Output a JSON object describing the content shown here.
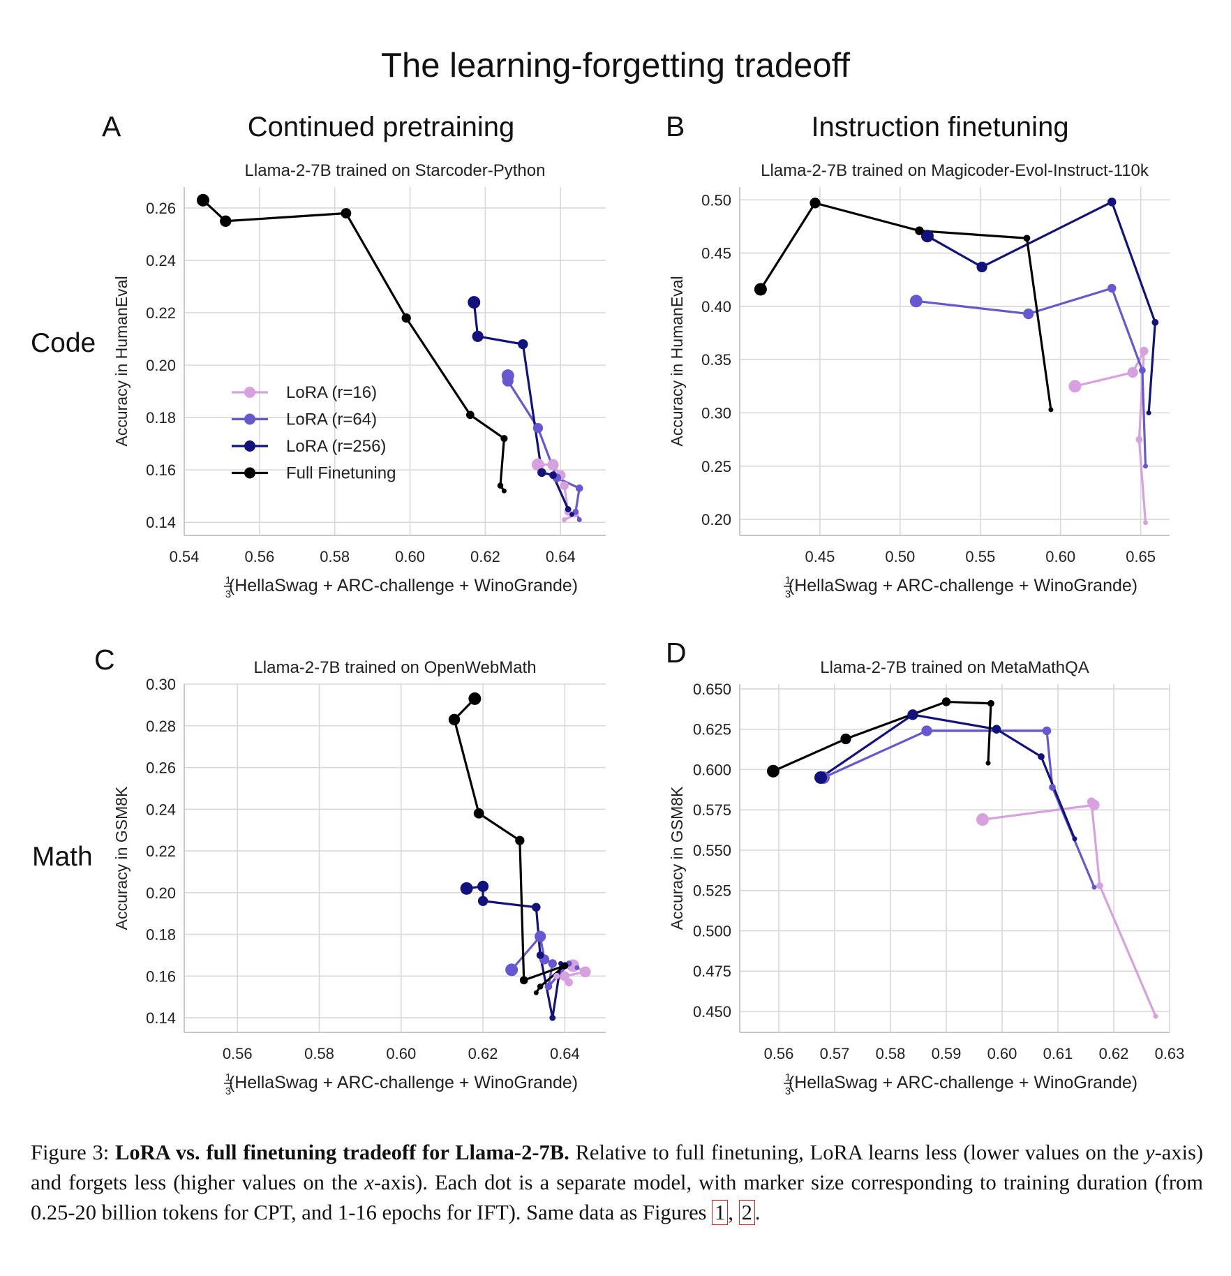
{
  "figure": {
    "title": "The learning-forgetting tradeoff",
    "columns": {
      "A": "Continued pretraining",
      "B": "Instruction finetuning"
    },
    "rows": {
      "code": "Code",
      "math": "Math"
    },
    "letters": [
      "A",
      "B",
      "C",
      "D"
    ]
  },
  "colors": {
    "lora16": "#d7a1df",
    "lora64": "#6658d0",
    "lora256": "#12127e",
    "full": "#000000",
    "grid": "#d9d9d9"
  },
  "legend": [
    {
      "key": "lora16",
      "label": "LoRA (r=16)"
    },
    {
      "key": "lora64",
      "label": "LoRA (r=64)"
    },
    {
      "key": "lora256",
      "label": "LoRA (r=256)"
    },
    {
      "key": "full",
      "label": "Full Finetuning"
    }
  ],
  "chart_data": [
    {
      "id": "A",
      "type": "line",
      "title": "Llama-2-7B trained on Starcoder-Python",
      "xlabel_prefix": "1",
      "xlabel_den": "3",
      "xlabel": "(HellaSwag + ARC-challenge + WinoGrande)",
      "ylabel": "Accuracy in HumanEval",
      "xlim": [
        0.54,
        0.652
      ],
      "ylim": [
        0.135,
        0.268
      ],
      "xticks": [
        0.54,
        0.56,
        0.58,
        0.6,
        0.62,
        0.64
      ],
      "xtick_labels": [
        "0.54",
        "0.56",
        "0.58",
        "0.60",
        "0.62",
        "0.64"
      ],
      "yticks": [
        0.14,
        0.16,
        0.18,
        0.2,
        0.22,
        0.24,
        0.26
      ],
      "ytick_labels": [
        "0.14",
        "0.16",
        "0.18",
        "0.20",
        "0.22",
        "0.24",
        "0.26"
      ],
      "legend_position": "center-left",
      "series": [
        {
          "key": "lora16",
          "name": "LoRA (r=16)",
          "x": [
            0.634,
            0.638,
            0.64,
            0.641,
            0.642,
            0.644,
            0.641
          ],
          "y": [
            0.162,
            0.162,
            0.158,
            0.154,
            0.144,
            0.143,
            0.141
          ]
        },
        {
          "key": "lora64",
          "name": "LoRA (r=64)",
          "x": [
            0.626,
            0.626,
            0.634,
            0.639,
            0.645,
            0.644,
            0.645
          ],
          "y": [
            0.196,
            0.194,
            0.176,
            0.157,
            0.153,
            0.144,
            0.141
          ]
        },
        {
          "key": "lora256",
          "name": "LoRA (r=256)",
          "x": [
            0.617,
            0.618,
            0.63,
            0.635,
            0.638,
            0.642,
            0.643
          ],
          "y": [
            0.224,
            0.211,
            0.208,
            0.159,
            0.158,
            0.145,
            0.143
          ]
        },
        {
          "key": "full",
          "name": "Full Finetuning",
          "x": [
            0.545,
            0.551,
            0.583,
            0.599,
            0.616,
            0.625,
            0.624,
            0.625
          ],
          "y": [
            0.263,
            0.255,
            0.258,
            0.218,
            0.181,
            0.172,
            0.154,
            0.152
          ]
        }
      ]
    },
    {
      "id": "B",
      "type": "line",
      "title": "Llama-2-7B trained on Magicoder-Evol-Instruct-110k",
      "xlabel_prefix": "1",
      "xlabel_den": "3",
      "xlabel": "(HellaSwag + ARC-challenge + WinoGrande)",
      "ylabel": "Accuracy in HumanEval",
      "xlim": [
        0.4,
        0.668
      ],
      "ylim": [
        0.185,
        0.512
      ],
      "xticks": [
        0.45,
        0.5,
        0.55,
        0.6,
        0.65
      ],
      "xtick_labels": [
        "0.45",
        "0.50",
        "0.55",
        "0.60",
        "0.65"
      ],
      "yticks": [
        0.2,
        0.25,
        0.3,
        0.35,
        0.4,
        0.45,
        0.5
      ],
      "ytick_labels": [
        "0.20",
        "0.25",
        "0.30",
        "0.35",
        "0.40",
        "0.45",
        "0.50"
      ],
      "series": [
        {
          "key": "lora16",
          "name": "LoRA (r=16)",
          "x": [
            0.609,
            0.645,
            0.652,
            0.649,
            0.653
          ],
          "y": [
            0.325,
            0.338,
            0.358,
            0.275,
            0.197
          ]
        },
        {
          "key": "lora64",
          "name": "LoRA (r=64)",
          "x": [
            0.51,
            0.58,
            0.632,
            0.651,
            0.653
          ],
          "y": [
            0.405,
            0.393,
            0.417,
            0.34,
            0.25
          ]
        },
        {
          "key": "lora256",
          "name": "LoRA (r=256)",
          "x": [
            0.517,
            0.551,
            0.632,
            0.659,
            0.655
          ],
          "y": [
            0.466,
            0.437,
            0.498,
            0.385,
            0.3
          ]
        },
        {
          "key": "full",
          "name": "Full Finetuning",
          "x": [
            0.413,
            0.447,
            0.512,
            0.579,
            0.594
          ],
          "y": [
            0.416,
            0.497,
            0.471,
            0.464,
            0.303
          ]
        }
      ]
    },
    {
      "id": "C",
      "type": "line",
      "title": "Llama-2-7B trained on OpenWebMath",
      "xlabel_prefix": "1",
      "xlabel_den": "3",
      "xlabel": "(HellaSwag + ARC-challenge + WinoGrande)",
      "ylabel": "Accuracy in GSM8K",
      "xlim": [
        0.547,
        0.65
      ],
      "ylim": [
        0.133,
        0.3
      ],
      "xticks": [
        0.56,
        0.58,
        0.6,
        0.62,
        0.64
      ],
      "xtick_labels": [
        "0.56",
        "0.58",
        "0.60",
        "0.62",
        "0.64"
      ],
      "yticks": [
        0.14,
        0.16,
        0.18,
        0.2,
        0.22,
        0.24,
        0.26,
        0.28,
        0.3
      ],
      "ytick_labels": [
        "0.14",
        "0.16",
        "0.18",
        "0.20",
        "0.22",
        "0.24",
        "0.26",
        "0.28",
        "0.30"
      ],
      "series": [
        {
          "key": "lora16",
          "name": "LoRA (r=16)",
          "x": [
            0.642,
            0.645,
            0.64,
            0.641,
            0.638,
            0.636
          ],
          "y": [
            0.165,
            0.162,
            0.16,
            0.157,
            0.16,
            0.155
          ]
        },
        {
          "key": "lora64",
          "name": "LoRA (r=64)",
          "x": [
            0.627,
            0.634,
            0.635,
            0.637,
            0.636,
            0.641,
            0.643
          ],
          "y": [
            0.163,
            0.179,
            0.168,
            0.166,
            0.155,
            0.166,
            0.164
          ]
        },
        {
          "key": "lora256",
          "name": "LoRA (r=256)",
          "x": [
            0.616,
            0.62,
            0.62,
            0.633,
            0.634,
            0.637,
            0.639
          ],
          "y": [
            0.202,
            0.203,
            0.196,
            0.193,
            0.17,
            0.14,
            0.166
          ]
        },
        {
          "key": "full",
          "name": "Full Finetuning",
          "x": [
            0.618,
            0.613,
            0.619,
            0.629,
            0.63,
            0.64,
            0.634,
            0.633
          ],
          "y": [
            0.293,
            0.283,
            0.238,
            0.225,
            0.158,
            0.165,
            0.155,
            0.152
          ]
        }
      ]
    },
    {
      "id": "D",
      "type": "line",
      "title": "Llama-2-7B trained on MetaMathQA",
      "xlabel_prefix": "1",
      "xlabel_den": "3",
      "xlabel": "(HellaSwag + ARC-challenge + WinoGrande)",
      "ylabel": "Accuracy in GSM8K",
      "xlim": [
        0.553,
        0.63
      ],
      "ylim": [
        0.437,
        0.653
      ],
      "xticks": [
        0.56,
        0.57,
        0.58,
        0.59,
        0.6,
        0.61,
        0.62,
        0.63
      ],
      "xtick_labels": [
        "0.56",
        "0.57",
        "0.58",
        "0.59",
        "0.60",
        "0.61",
        "0.62",
        "0.63"
      ],
      "yticks": [
        0.45,
        0.475,
        0.5,
        0.525,
        0.55,
        0.575,
        0.6,
        0.625,
        0.65
      ],
      "ytick_labels": [
        "0.450",
        "0.475",
        "0.500",
        "0.525",
        "0.550",
        "0.575",
        "0.600",
        "0.625",
        "0.650"
      ],
      "series": [
        {
          "key": "lora16",
          "name": "LoRA (r=16)",
          "x": [
            0.5965,
            0.6165,
            0.616,
            0.6175,
            0.6275
          ],
          "y": [
            0.569,
            0.578,
            0.58,
            0.528,
            0.447
          ]
        },
        {
          "key": "lora64",
          "name": "LoRA (r=64)",
          "x": [
            0.568,
            0.5865,
            0.608,
            0.609,
            0.6165
          ],
          "y": [
            0.595,
            0.624,
            0.624,
            0.589,
            0.527
          ]
        },
        {
          "key": "lora256",
          "name": "LoRA (r=256)",
          "x": [
            0.5675,
            0.584,
            0.599,
            0.607,
            0.613
          ],
          "y": [
            0.595,
            0.634,
            0.625,
            0.608,
            0.557
          ]
        },
        {
          "key": "full",
          "name": "Full Finetuning",
          "x": [
            0.559,
            0.572,
            0.59,
            0.598,
            0.5975
          ],
          "y": [
            0.599,
            0.619,
            0.642,
            0.641,
            0.604
          ]
        }
      ]
    }
  ],
  "caption": {
    "label": "Figure 3:",
    "bold": "LoRA vs. full finetuning tradeoff for Llama-2-7B.",
    "text1": "Relative to full finetuning, LoRA learns less (lower values on the",
    "yvar": "y",
    "text2": "-axis) and forgets less (higher values on the",
    "xvar": "x",
    "text3": "-axis). Each dot is a separate model, with marker size corresponding to training duration (from 0.25-20 billion tokens for CPT, and 1-16 epochs for IFT). Same data as Figures",
    "ref1": "1",
    "sep": ",",
    "ref2": "2",
    "end": "."
  }
}
